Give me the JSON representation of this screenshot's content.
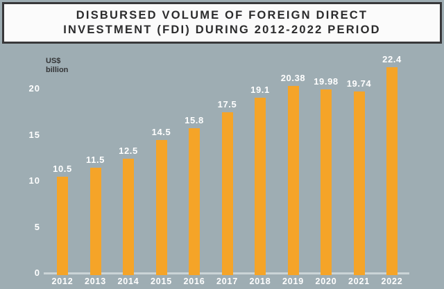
{
  "title": {
    "line1": "DISBURSED VOLUME OF FOREIGN DIRECT",
    "line2": "INVESTMENT (FDI) DURING 2012-2022 PERIOD"
  },
  "chart_data": {
    "type": "bar",
    "title": "Disbursed volume of foreign direct investment (FDI) during 2012-2022 period",
    "categories": [
      "2012",
      "2013",
      "2014",
      "2015",
      "2016",
      "2017",
      "2018",
      "2019",
      "2020",
      "2021",
      "2022"
    ],
    "values": [
      10.5,
      11.5,
      12.5,
      14.5,
      15.8,
      17.5,
      19.1,
      20.38,
      19.98,
      19.74,
      22.4
    ],
    "value_labels": [
      "10.5",
      "11.5",
      "12.5",
      "14.5",
      "15.8",
      "17.5",
      "19.1",
      "20.38",
      "19.98",
      "19.74",
      "22.4"
    ],
    "xlabel": "",
    "ylabel": "US$ billion",
    "ylabel_lines": [
      "US$",
      "billion"
    ],
    "yticks": [
      0,
      5,
      10,
      15,
      20
    ],
    "ylim": [
      0,
      22.4
    ],
    "grid": false,
    "legend": "none"
  },
  "colors": {
    "background": "#9EADB3",
    "bar": "#F5A428",
    "value_text": "#FFFFFF",
    "axis_text": "#FFFFFF",
    "unit_text": "#333436",
    "baseline": "#CBD4D7",
    "title_bg": "#FBFBFB",
    "title_border": "#38383A",
    "title_text": "#2B2B2C"
  }
}
